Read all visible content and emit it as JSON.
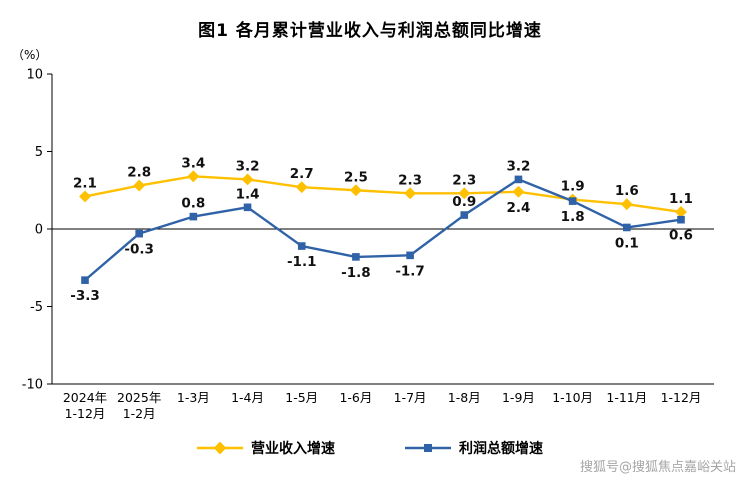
{
  "title": "图1 各月累计营业收入与利润总额同比增速",
  "unit_label": "（%）",
  "watermark": "搜狐号@搜狐焦点嘉峪关站",
  "chart_data": {
    "type": "line",
    "title": "图1 各月累计营业收入与利润总额同比增速",
    "ylabel": "（%）",
    "ylim": [
      -10,
      10
    ],
    "y_ticks": [
      10,
      5,
      0,
      -5,
      -10
    ],
    "grid": "zero-line-only",
    "legend_position": "bottom",
    "categories": [
      "2024年\n1-12月",
      "2025年\n1-2月",
      "1-3月",
      "1-4月",
      "1-5月",
      "1-6月",
      "1-7月",
      "1-8月",
      "1-9月",
      "1-10月",
      "1-11月",
      "1-12月"
    ],
    "series": [
      {
        "name": "营业收入增速",
        "color": "#FFC000",
        "marker": "diamond",
        "values": [
          2.1,
          2.8,
          3.4,
          3.2,
          2.7,
          2.5,
          2.3,
          2.3,
          2.4,
          1.9,
          1.6,
          1.1
        ],
        "label_side": [
          "above",
          "above",
          "above",
          "above",
          "above",
          "above",
          "above",
          "above",
          "below",
          "above",
          "above",
          "above"
        ]
      },
      {
        "name": "利润总额增速",
        "color": "#2F62A7",
        "marker": "square",
        "values": [
          -3.3,
          -0.3,
          0.8,
          1.4,
          -1.1,
          -1.8,
          -1.7,
          0.9,
          3.2,
          1.8,
          0.1,
          0.6
        ],
        "label_side": [
          "below",
          "below",
          "above",
          "above",
          "below",
          "below",
          "below",
          "above",
          "above",
          "below",
          "below",
          "below"
        ]
      }
    ]
  }
}
